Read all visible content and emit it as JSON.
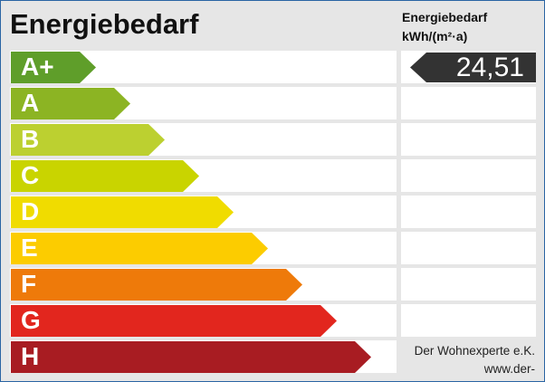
{
  "title": "Energiebedarf",
  "column_header": {
    "line1": "Energiebedarf",
    "line2": "kWh/(m²·a)"
  },
  "classes": [
    {
      "label": "A+",
      "color": "#5f9e2a"
    },
    {
      "label": "A",
      "color": "#8cb423"
    },
    {
      "label": "B",
      "color": "#bcd030"
    },
    {
      "label": "C",
      "color": "#c9d400"
    },
    {
      "label": "D",
      "color": "#f0dc00"
    },
    {
      "label": "E",
      "color": "#fccc00"
    },
    {
      "label": "F",
      "color": "#ee7a0a"
    },
    {
      "label": "G",
      "color": "#e2261e"
    },
    {
      "label": "H",
      "color": "#a81c22"
    }
  ],
  "value": {
    "text": "24,51",
    "class": "A+",
    "color": "#333333"
  },
  "footer": {
    "company": "Der Wohnexperte e.K.",
    "website": "www.der-wohnexperte.de"
  }
}
